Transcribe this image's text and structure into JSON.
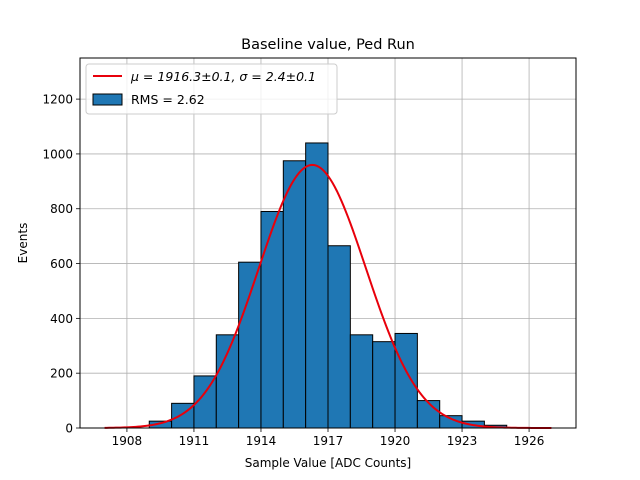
{
  "chart_data": {
    "type": "bar",
    "title": "Baseline value, Ped Run",
    "xlabel": "Sample Value [ADC Counts]",
    "ylabel": "Events",
    "xlim": [
      1905.9,
      1928.1
    ],
    "ylim": [
      0,
      1350
    ],
    "xticks": [
      1908,
      1911,
      1914,
      1917,
      1920,
      1923,
      1926
    ],
    "yticks": [
      0,
      200,
      400,
      600,
      800,
      1000,
      1200
    ],
    "grid": true,
    "legend_position": "top-left",
    "histogram": {
      "name": "RMS = 2.62",
      "color": "#1f77b4",
      "edge_color": "#000000",
      "bin_edges": [
        1909,
        1910,
        1911,
        1912,
        1913,
        1914,
        1915,
        1916,
        1917,
        1918,
        1919,
        1920,
        1921,
        1922,
        1923,
        1924,
        1925
      ],
      "values": [
        25,
        90,
        190,
        340,
        605,
        790,
        975,
        1040,
        665,
        340,
        315,
        345,
        100,
        45,
        25,
        10
      ]
    },
    "fit": {
      "name_prefix": "μ = 1916.3±0.1, σ = 2.4±0.1",
      "color": "#e8000b",
      "mu": 1916.3,
      "sigma": 2.4,
      "amplitude": 960,
      "x_range": [
        1907,
        1927
      ]
    }
  }
}
